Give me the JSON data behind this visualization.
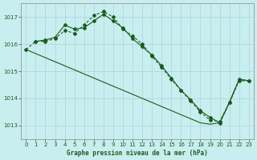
{
  "title": "Graphe pression niveau de la mer (hPa)",
  "background_color": "#c8eef0",
  "grid_color": "#b0d8da",
  "line_color": "#1a5c1a",
  "xlim": [
    -0.5,
    23.5
  ],
  "ylim": [
    1012.5,
    1017.5
  ],
  "yticks": [
    1013,
    1014,
    1015,
    1016,
    1017
  ],
  "xticks": [
    0,
    1,
    2,
    3,
    4,
    5,
    6,
    7,
    8,
    9,
    10,
    11,
    12,
    13,
    14,
    15,
    16,
    17,
    18,
    19,
    20,
    21,
    22,
    23
  ],
  "line1_x": [
    0,
    1,
    2,
    3,
    4,
    5,
    6,
    7,
    8,
    9,
    10,
    11,
    12,
    13,
    14,
    15,
    16,
    17,
    18,
    19,
    20,
    21,
    22,
    23
  ],
  "line1_y": [
    1015.8,
    1016.1,
    1016.1,
    1016.2,
    1016.5,
    1016.4,
    1016.7,
    1017.05,
    1017.2,
    1017.0,
    1016.55,
    1016.3,
    1016.0,
    1015.55,
    1015.15,
    1014.7,
    1014.3,
    1013.9,
    1013.5,
    1013.2,
    1013.15,
    1013.85,
    1014.65,
    1014.65
  ],
  "line2_x": [
    1,
    2,
    3,
    4,
    5,
    6,
    7,
    8,
    9,
    10,
    11,
    12,
    13,
    14,
    15,
    16,
    17,
    18,
    19,
    20,
    21,
    22,
    23
  ],
  "line2_y": [
    1016.1,
    1016.15,
    1016.25,
    1016.7,
    1016.55,
    1016.6,
    1016.85,
    1017.1,
    1016.85,
    1016.6,
    1016.2,
    1015.9,
    1015.6,
    1015.2,
    1014.75,
    1014.3,
    1013.95,
    1013.55,
    1013.3,
    1013.1,
    1013.85,
    1014.7,
    1014.65
  ],
  "line3_x": [
    0,
    1,
    2,
    3,
    4,
    5,
    6,
    7,
    8,
    9,
    10,
    11,
    12,
    13,
    14,
    15,
    16,
    17,
    18,
    19,
    20,
    21,
    22,
    23
  ],
  "line3_y": [
    1015.8,
    1015.65,
    1015.5,
    1015.35,
    1015.2,
    1015.05,
    1014.9,
    1014.75,
    1014.6,
    1014.45,
    1014.3,
    1014.15,
    1014.0,
    1013.85,
    1013.7,
    1013.55,
    1013.4,
    1013.25,
    1013.1,
    1013.05,
    1013.1,
    1013.85,
    1014.7,
    1014.65
  ]
}
